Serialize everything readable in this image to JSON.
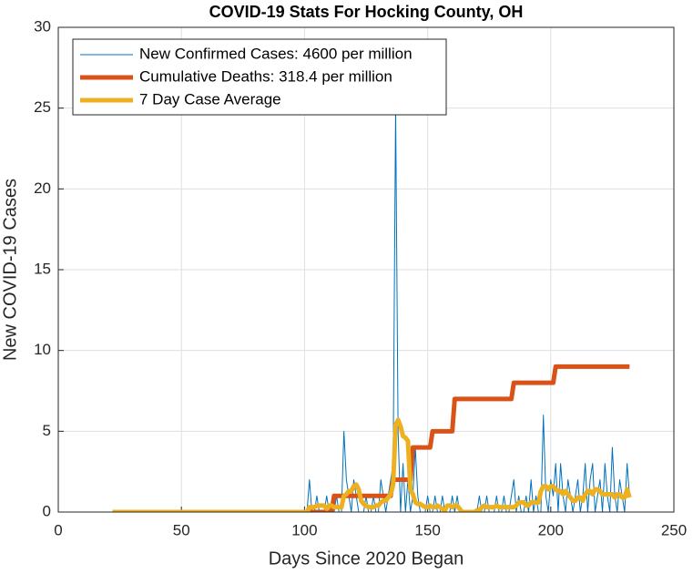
{
  "chart_data": {
    "type": "line",
    "title": "COVID-19 Stats For Hocking County, OH",
    "x_label": "Days Since 2020 Began",
    "y_label": "New COVID-19 Cases",
    "xlim": [
      0,
      250
    ],
    "xticks": [
      0,
      50,
      100,
      150,
      200,
      250
    ],
    "ylim": [
      0,
      30
    ],
    "yticks": [
      0,
      5,
      10,
      15,
      20,
      25,
      30
    ],
    "grid": true,
    "legend": "top-left",
    "x": [
      22,
      100,
      101,
      102,
      103,
      104,
      105,
      106,
      107,
      108,
      109,
      110,
      111,
      112,
      113,
      114,
      115,
      116,
      117,
      118,
      119,
      120,
      121,
      122,
      123,
      124,
      125,
      126,
      127,
      128,
      129,
      130,
      131,
      132,
      133,
      134,
      135,
      136,
      137,
      138,
      139,
      140,
      141,
      142,
      143,
      144,
      145,
      146,
      147,
      148,
      149,
      150,
      151,
      152,
      153,
      154,
      155,
      156,
      157,
      158,
      159,
      160,
      161,
      162,
      163,
      164,
      165,
      166,
      167,
      168,
      169,
      170,
      171,
      172,
      173,
      174,
      175,
      176,
      177,
      178,
      179,
      180,
      181,
      182,
      183,
      184,
      185,
      186,
      187,
      188,
      189,
      190,
      191,
      192,
      193,
      194,
      195,
      196,
      197,
      198,
      199,
      200,
      201,
      202,
      203,
      204,
      205,
      206,
      207,
      208,
      209,
      210,
      211,
      212,
      213,
      214,
      215,
      216,
      217,
      218,
      219,
      220,
      221,
      222,
      223,
      224,
      225,
      226,
      227,
      228,
      229,
      230,
      231,
      232
    ],
    "series": [
      {
        "name": "New Confirmed Cases: 4600 per million",
        "color": "#0072bd",
        "width": 1,
        "values": [
          0,
          0,
          0,
          2,
          0,
          0,
          1,
          0,
          0,
          0,
          1,
          0,
          0,
          0,
          1,
          0,
          0,
          5,
          2,
          1,
          0,
          2,
          1,
          0,
          0,
          0,
          1,
          0,
          0,
          1,
          0,
          0,
          2,
          1,
          0,
          1,
          2,
          3,
          25,
          5,
          0,
          3,
          0,
          2,
          0,
          1,
          4,
          1,
          0,
          0,
          0,
          1,
          0,
          0,
          1,
          0,
          0,
          1,
          0,
          0,
          0,
          1,
          0,
          1,
          0,
          0,
          0,
          0,
          0,
          0,
          0,
          0,
          1,
          0,
          0,
          1,
          0,
          0,
          0,
          1,
          0,
          0,
          1,
          0,
          0,
          1,
          2,
          0,
          1,
          0,
          0,
          1,
          0,
          2,
          0,
          1,
          0,
          0,
          6,
          1,
          0,
          2,
          1,
          3,
          0,
          3,
          1,
          0,
          2,
          1,
          0,
          1,
          2,
          0,
          1,
          3,
          0,
          2,
          3,
          0,
          1,
          2,
          0,
          3,
          1,
          0,
          4,
          1,
          0,
          2,
          1,
          0,
          3,
          1
        ]
      },
      {
        "name": "Cumulative Deaths: 318.4 per million",
        "color": "#d95319",
        "width": 5,
        "values": [
          0,
          0,
          0,
          0,
          0,
          0,
          0,
          0,
          0,
          0,
          0,
          0,
          0,
          1,
          1,
          1,
          1,
          1,
          1,
          1,
          1,
          1,
          1,
          1,
          1,
          1,
          1,
          1,
          1,
          1,
          1,
          1,
          1,
          1,
          1,
          1,
          1,
          2,
          2,
          2,
          2,
          2,
          2,
          2,
          2,
          4,
          4,
          4,
          4,
          4,
          4,
          4,
          4,
          5,
          5,
          5,
          5,
          5,
          5,
          5,
          5,
          5,
          7,
          7,
          7,
          7,
          7,
          7,
          7,
          7,
          7,
          7,
          7,
          7,
          7,
          7,
          7,
          7,
          7,
          7,
          7,
          7,
          7,
          7,
          7,
          7,
          8,
          8,
          8,
          8,
          8,
          8,
          8,
          8,
          8,
          8,
          8,
          8,
          8,
          8,
          8,
          8,
          8,
          9,
          9,
          9,
          9,
          9,
          9,
          9,
          9,
          9,
          9,
          9,
          9,
          9,
          9,
          9,
          9,
          9,
          9,
          9,
          9,
          9,
          9,
          9,
          9,
          9,
          9,
          9,
          9,
          9,
          9,
          9
        ]
      },
      {
        "name": "7 Day Case Average",
        "color": "#edb120",
        "width": 5,
        "values": [
          0,
          0,
          0,
          0.3,
          0.3,
          0.3,
          0.4,
          0.4,
          0.4,
          0.4,
          0.2,
          0.4,
          0.4,
          0.3,
          0.3,
          0.3,
          0.3,
          1,
          1.1,
          1.3,
          1.3,
          1.6,
          1.7,
          1.4,
          0.7,
          0.5,
          0.4,
          0.3,
          0.3,
          0.3,
          0.4,
          0.4,
          0.6,
          0.7,
          0.7,
          0.9,
          1.1,
          1.7,
          5.4,
          5.7,
          5.3,
          4.7,
          4.6,
          4.4,
          1.4,
          1.1,
          0.6,
          0.5,
          0.5,
          0.4,
          0.3,
          0.3,
          0.4,
          0.3,
          0.3,
          0.4,
          0.3,
          0.2,
          0.1,
          0.4,
          0.4,
          0.3,
          0.4,
          0.4,
          0.2,
          0,
          0,
          0,
          0,
          0,
          0,
          0.1,
          0.1,
          0.3,
          0.4,
          0.3,
          0.3,
          0.3,
          0.3,
          0.4,
          0.3,
          0.3,
          0.3,
          0.3,
          0.3,
          0.3,
          0.3,
          0.4,
          0.6,
          0.6,
          0.6,
          0.4,
          0.4,
          0.6,
          0.6,
          0.6,
          0.6,
          1.3,
          1.6,
          1.6,
          1.4,
          1.6,
          1.6,
          1.4,
          1.3,
          1.3,
          1.1,
          1.3,
          1.1,
          0.9,
          0.7,
          0.7,
          0.9,
          0.9,
          0.7,
          1.1,
          1.3,
          1.3,
          1.1,
          1.4,
          1.4,
          1.3,
          1.1,
          1.1,
          1.1,
          1.1,
          1.1,
          0.9,
          1.1,
          1.1,
          0.9,
          0.9,
          1.4,
          0.9
        ]
      }
    ]
  }
}
